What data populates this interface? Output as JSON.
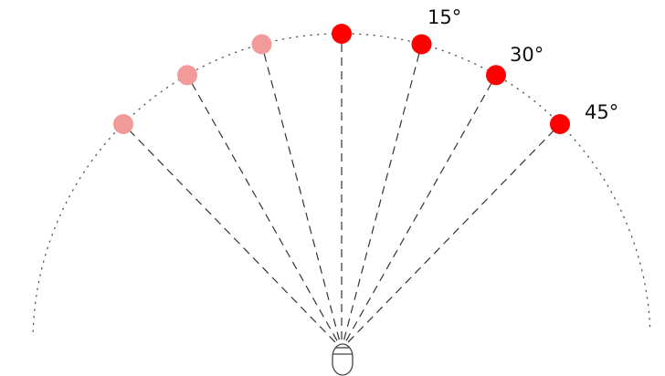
{
  "diagram": {
    "labels": [
      "15°",
      "30°",
      "45°"
    ],
    "colors": {
      "active": "#ff0000",
      "faded": "#f29a9a",
      "arc": "#555555",
      "ray": "#333333",
      "listener": "#444444"
    },
    "points": [
      {
        "angle": -45,
        "state": "faded"
      },
      {
        "angle": -30,
        "state": "faded"
      },
      {
        "angle": -15,
        "state": "faded"
      },
      {
        "angle": 0,
        "state": "active"
      },
      {
        "angle": 15,
        "state": "active",
        "label_index": 0
      },
      {
        "angle": 30,
        "state": "active",
        "label_index": 1
      },
      {
        "angle": 45,
        "state": "active",
        "label_index": 2
      }
    ]
  }
}
